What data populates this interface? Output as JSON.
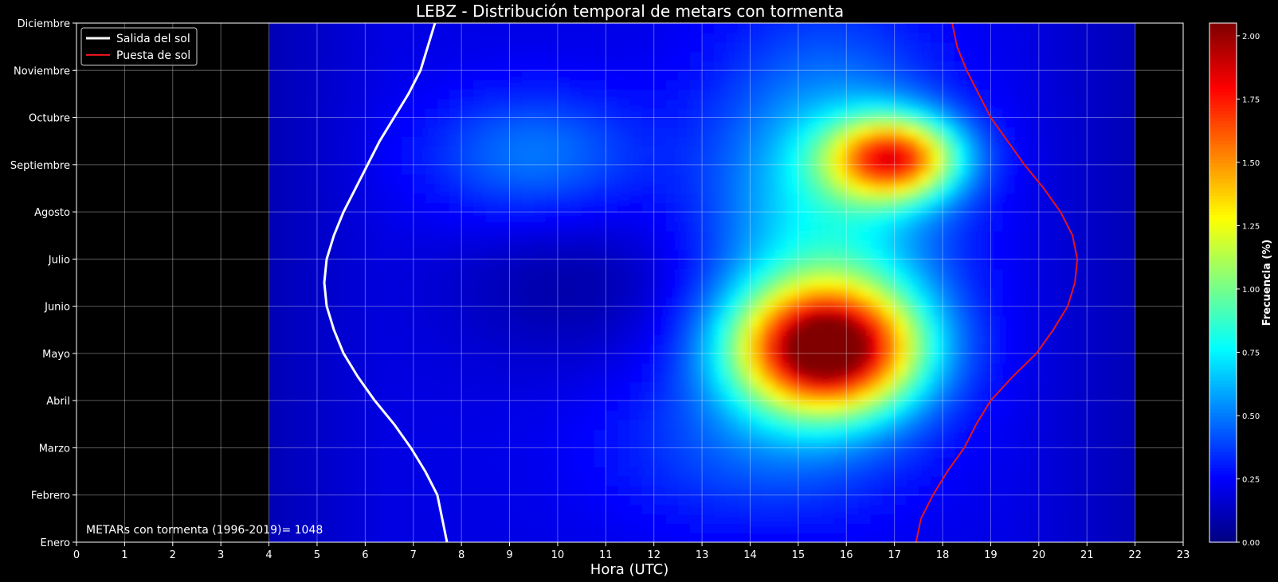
{
  "chart_data": {
    "type": "heatmap",
    "title": "LEBZ - Distribución temporal de metars con tormenta",
    "xlabel": "Hora (UTC)",
    "ylabel": "",
    "x_ticks": [
      "0",
      "1",
      "2",
      "3",
      "4",
      "5",
      "6",
      "7",
      "8",
      "9",
      "10",
      "11",
      "12",
      "13",
      "14",
      "15",
      "16",
      "17",
      "18",
      "19",
      "20",
      "21",
      "22",
      "23"
    ],
    "xlim": [
      0,
      23
    ],
    "y_ticks": [
      "Enero",
      "Febrero",
      "Marzo",
      "Abril",
      "Mayo",
      "Junio",
      "Julio",
      "Agosto",
      "Septiembre",
      "Octubre",
      "Noviembre",
      "Diciembre"
    ],
    "ylim": [
      0,
      11
    ],
    "data_hour_range": [
      4,
      22
    ],
    "grid": true,
    "colormap": "jet",
    "colorbar": {
      "label": "Frecuencia (%)",
      "range": [
        0,
        2.05
      ],
      "ticks": [
        "0.00",
        "0.25",
        "0.50",
        "0.75",
        "1.00",
        "1.25",
        "1.50",
        "1.75",
        "2.00"
      ]
    },
    "peaks": [
      {
        "hour": 15.7,
        "month_index": 4.1,
        "value": 2.0
      },
      {
        "hour": 17.0,
        "month_index": 8.1,
        "value": 1.6
      }
    ],
    "series": [
      {
        "name": "Salida del sol",
        "color": "#ffffff",
        "points": [
          [
            7.7,
            0
          ],
          [
            7.6,
            0.5
          ],
          [
            7.5,
            1
          ],
          [
            7.25,
            1.5
          ],
          [
            6.95,
            2
          ],
          [
            6.6,
            2.5
          ],
          [
            6.2,
            3
          ],
          [
            5.85,
            3.5
          ],
          [
            5.55,
            4
          ],
          [
            5.35,
            4.5
          ],
          [
            5.2,
            5
          ],
          [
            5.15,
            5.5
          ],
          [
            5.2,
            6
          ],
          [
            5.35,
            6.5
          ],
          [
            5.55,
            7
          ],
          [
            5.8,
            7.5
          ],
          [
            6.05,
            8
          ],
          [
            6.3,
            8.5
          ],
          [
            6.6,
            9
          ],
          [
            6.9,
            9.5
          ],
          [
            7.15,
            10
          ],
          [
            7.3,
            10.5
          ],
          [
            7.45,
            11
          ]
        ]
      },
      {
        "name": "Puesta de sol",
        "color": "#e8141c",
        "points": [
          [
            17.45,
            0
          ],
          [
            17.55,
            0.5
          ],
          [
            17.8,
            1
          ],
          [
            18.1,
            1.5
          ],
          [
            18.45,
            2
          ],
          [
            18.7,
            2.5
          ],
          [
            19.0,
            3
          ],
          [
            19.45,
            3.5
          ],
          [
            19.95,
            4
          ],
          [
            20.3,
            4.5
          ],
          [
            20.6,
            5
          ],
          [
            20.75,
            5.5
          ],
          [
            20.8,
            6
          ],
          [
            20.7,
            6.5
          ],
          [
            20.45,
            7
          ],
          [
            20.1,
            7.5
          ],
          [
            19.7,
            8
          ],
          [
            19.35,
            8.5
          ],
          [
            19.0,
            9
          ],
          [
            18.75,
            9.5
          ],
          [
            18.5,
            10
          ],
          [
            18.3,
            10.5
          ],
          [
            18.2,
            11
          ]
        ]
      }
    ],
    "annotation": "METARs con tormenta (1996-2019)= 1048",
    "legend_position": "top-left"
  }
}
